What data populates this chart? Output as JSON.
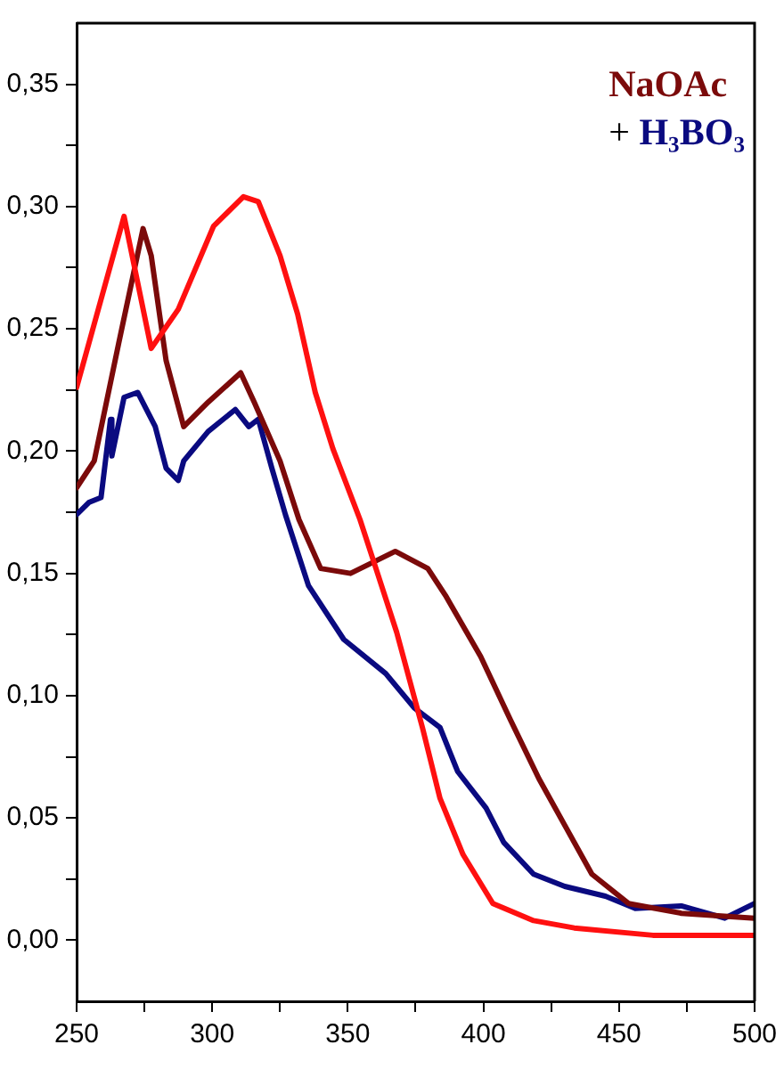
{
  "chart_data": {
    "type": "line",
    "xlim": [
      250,
      500
    ],
    "xticks": [
      250,
      {
        "value": 275,
        "label": null
      },
      300,
      {
        "value": 325,
        "label": null
      },
      350,
      {
        "value": 375,
        "label": null
      },
      400,
      {
        "value": 425,
        "label": null
      },
      450,
      {
        "value": 475,
        "label": null
      },
      500
    ],
    "ylim": [
      -0.025,
      0.375
    ],
    "yticks": [
      {
        "value": 0,
        "label": "0,00"
      },
      {
        "value": 0.025,
        "label": null
      },
      {
        "value": 0.05,
        "label": "0,05"
      },
      {
        "value": 0.075,
        "label": null
      },
      {
        "value": 0.1,
        "label": "0,10"
      },
      {
        "value": 0.125,
        "label": null
      },
      {
        "value": 0.15,
        "label": "0,15"
      },
      {
        "value": 0.175,
        "label": null
      },
      {
        "value": 0.2,
        "label": "0,20"
      },
      {
        "value": 0.225,
        "label": null
      },
      {
        "value": 0.25,
        "label": "0,25"
      },
      {
        "value": 0.275,
        "label": null
      },
      {
        "value": 0.3,
        "label": "0,30"
      },
      {
        "value": 0.325,
        "label": null
      },
      {
        "value": 0.35,
        "label": "0,35"
      }
    ],
    "grid": false,
    "legend": "top right",
    "marker": "none",
    "line_style": "solid",
    "annotations": [
      "+"
    ],
    "series": [
      {
        "color": "#ff1010",
        "x": [
          250,
          267.5,
          277.5,
          287.5,
          300.5,
          311.5,
          317,
          325,
          331.5,
          338,
          344.5,
          354.5,
          359.5,
          368,
          377.5,
          384,
          392.5,
          403.5,
          418.5,
          433.5,
          462.5,
          500
        ],
        "values": [
          0.226,
          0.296,
          0.242,
          0.258,
          0.292,
          0.304,
          0.302,
          0.28,
          0.256,
          0.224,
          0.201,
          0.172,
          0.155,
          0.126,
          0.087,
          0.058,
          0.035,
          0.015,
          0.008,
          0.005,
          0.002,
          0.002
        ]
      },
      {
        "name": "NaOAc",
        "color": "#7b0a0a",
        "x": [
          250,
          256.5,
          265.5,
          274.5,
          277.5,
          283,
          289.5,
          298.5,
          310.5,
          315.5,
          325,
          332,
          340,
          351,
          367.5,
          379.5,
          386,
          399,
          410,
          420.5,
          430,
          440,
          453.5,
          473,
          500
        ],
        "values": [
          0.185,
          0.196,
          0.244,
          0.291,
          0.28,
          0.237,
          0.21,
          0.22,
          0.232,
          0.22,
          0.196,
          0.172,
          0.152,
          0.15,
          0.159,
          0.152,
          0.141,
          0.116,
          0.09,
          0.066,
          0.047,
          0.027,
          0.015,
          0.011,
          0.009
        ]
      },
      {
        "name": "H₃BO₃",
        "color": "#0a0a80",
        "x": [
          250,
          254.5,
          259,
          262.5,
          263,
          267.5,
          272.5,
          279,
          283,
          287.5,
          289.5,
          298.5,
          308.5,
          313.5,
          317,
          322,
          327,
          335.5,
          348.5,
          364,
          374.5,
          384,
          390.5,
          401,
          407.5,
          418.5,
          430,
          445,
          456,
          473,
          489,
          500
        ],
        "values": [
          0.174,
          0.179,
          0.181,
          0.213,
          0.198,
          0.222,
          0.224,
          0.21,
          0.193,
          0.188,
          0.196,
          0.208,
          0.217,
          0.21,
          0.213,
          0.193,
          0.174,
          0.145,
          0.123,
          0.109,
          0.095,
          0.087,
          0.069,
          0.054,
          0.04,
          0.027,
          0.022,
          0.018,
          0.013,
          0.014,
          0.009,
          0.015
        ]
      }
    ]
  }
}
